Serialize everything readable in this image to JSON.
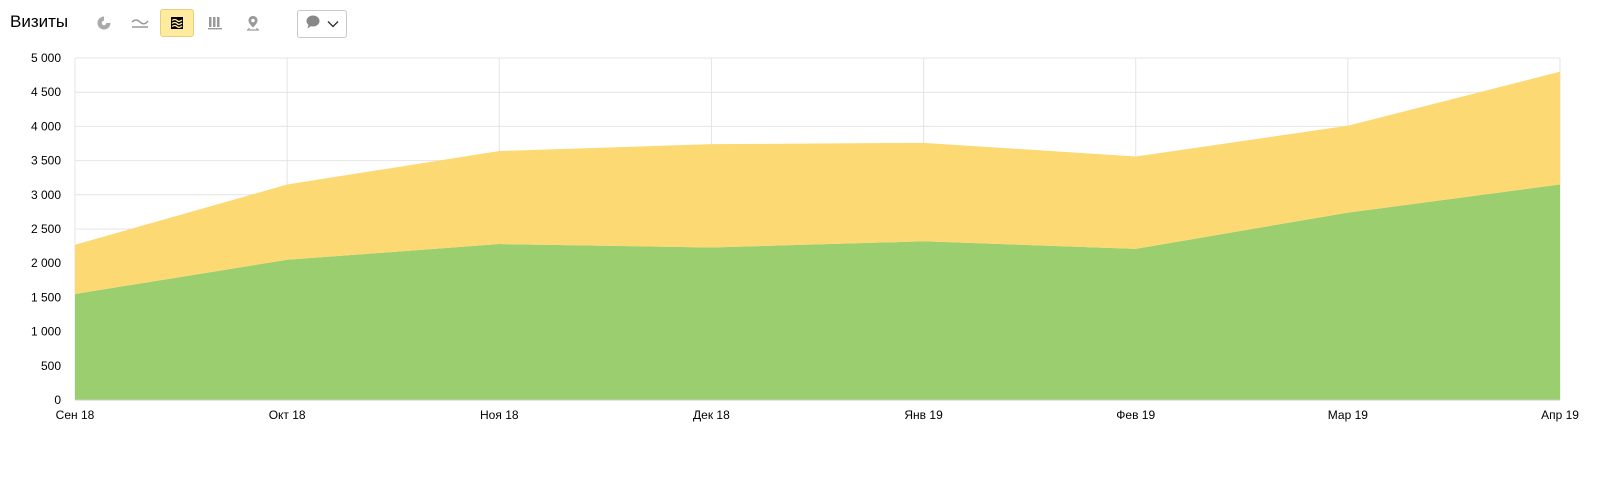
{
  "toolbar": {
    "title": "Визиты",
    "buttons": [
      {
        "icon": "pie-chart-icon",
        "active": false
      },
      {
        "icon": "line-chart-icon",
        "active": false
      },
      {
        "icon": "stacked-area-icon",
        "active": true
      },
      {
        "icon": "bar-chart-icon",
        "active": false
      },
      {
        "icon": "map-pin-icon",
        "active": false
      }
    ],
    "annotation_dropdown": {
      "icon": "comment-icon",
      "chevron": "chevron-down-icon"
    }
  },
  "colors": {
    "accent_active": "#ffeba0",
    "series_green": "#97cc6a",
    "series_yellow": "#fdd870"
  },
  "chart_data": {
    "type": "area",
    "stacked": true,
    "x": [
      "Сен 18",
      "Окт 18",
      "Ноя 18",
      "Дек 18",
      "Янв 19",
      "Фев 19",
      "Мар 19",
      "Апр 19"
    ],
    "series": [
      {
        "values": [
          1550,
          2050,
          2280,
          2230,
          2320,
          2210,
          2740,
          3150
        ],
        "color": "#97cc6a"
      },
      {
        "values": [
          720,
          1100,
          1360,
          1510,
          1440,
          1350,
          1270,
          1650
        ],
        "color": "#fdd870"
      }
    ],
    "ylim": [
      0,
      5000
    ],
    "yticks": [
      "0",
      "500",
      "1 000",
      "1 500",
      "2 000",
      "2 500",
      "3 000",
      "3 500",
      "4 000",
      "4 500",
      "5 000"
    ],
    "grid": true,
    "title": "",
    "xlabel": "",
    "ylabel": ""
  }
}
